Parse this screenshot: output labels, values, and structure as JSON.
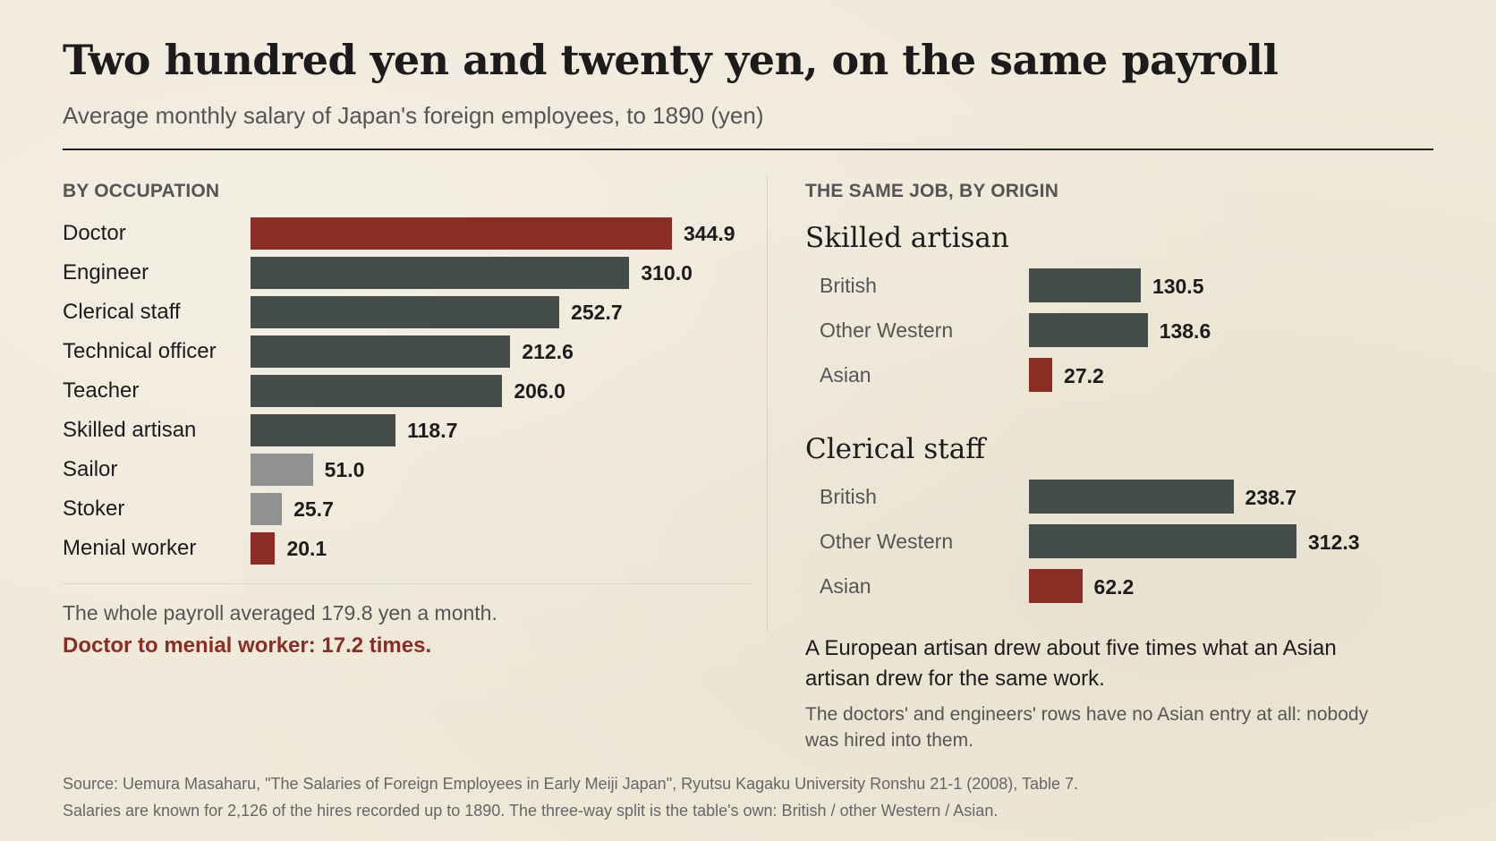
{
  "header": {
    "title": "Two hundred yen and twenty yen, on the same payroll",
    "subtitle": "Average monthly salary of Japan's foreign employees, to 1890 (yen)"
  },
  "colors": {
    "accent_red": "#8a2d25",
    "dark_bar": "#454d4b",
    "light_bar": "#8f9290"
  },
  "chart_data": [
    {
      "type": "bar",
      "orientation": "horizontal",
      "section_label": "BY OCCUPATION",
      "categories": [
        "Doctor",
        "Engineer",
        "Clerical staff",
        "Technical officer",
        "Teacher",
        "Skilled artisan",
        "Sailor",
        "Stoker",
        "Menial worker"
      ],
      "values": [
        344.9,
        310.0,
        252.7,
        212.6,
        206.0,
        118.7,
        51.0,
        25.7,
        20.1
      ],
      "value_labels": [
        "344.9",
        "310.0",
        "252.7",
        "212.6",
        "206.0",
        "118.7",
        "51.0",
        "25.7",
        "20.1"
      ],
      "bar_colors": [
        "#8a2d25",
        "#454d4b",
        "#454d4b",
        "#454d4b",
        "#454d4b",
        "#454d4b",
        "#8f9290",
        "#8f9290",
        "#8a2d25"
      ],
      "xlim": [
        0,
        344.9
      ],
      "grid": false
    },
    {
      "type": "bar",
      "orientation": "horizontal",
      "section_label": "THE SAME JOB, BY ORIGIN",
      "groups": [
        {
          "name": "Skilled artisan",
          "categories": [
            "British",
            "Other Western",
            "Asian"
          ],
          "values": [
            130.5,
            138.6,
            27.2
          ],
          "value_labels": [
            "130.5",
            "138.6",
            "27.2"
          ],
          "bar_colors": [
            "#454d4b",
            "#454d4b",
            "#8a2d25"
          ]
        },
        {
          "name": "Clerical staff",
          "categories": [
            "British",
            "Other Western",
            "Asian"
          ],
          "values": [
            238.7,
            312.3,
            62.2
          ],
          "value_labels": [
            "238.7",
            "312.3",
            "62.2"
          ],
          "bar_colors": [
            "#454d4b",
            "#454d4b",
            "#8a2d25"
          ]
        }
      ],
      "xlim": [
        0,
        312.3
      ],
      "grid": false
    }
  ],
  "notes": {
    "left_note": "The whole payroll averaged 179.8 yen a month.",
    "left_emphasis": "Doctor to menial worker: 17.2 times.",
    "right_note1": "A European artisan drew about five times what an Asian artisan drew for the same work.",
    "right_note2": "The doctors' and engineers' rows have no Asian entry at all: nobody was hired into them."
  },
  "source": {
    "line1": "Source: Uemura Masaharu, \"The Salaries of Foreign Employees in Early Meiji Japan\", Ryutsu Kagaku University Ronshu 21-1 (2008), Table 7.",
    "line2": "Salaries are known for 2,126 of the hires recorded up to 1890. The three-way split is the table's own: British / other Western / Asian."
  }
}
